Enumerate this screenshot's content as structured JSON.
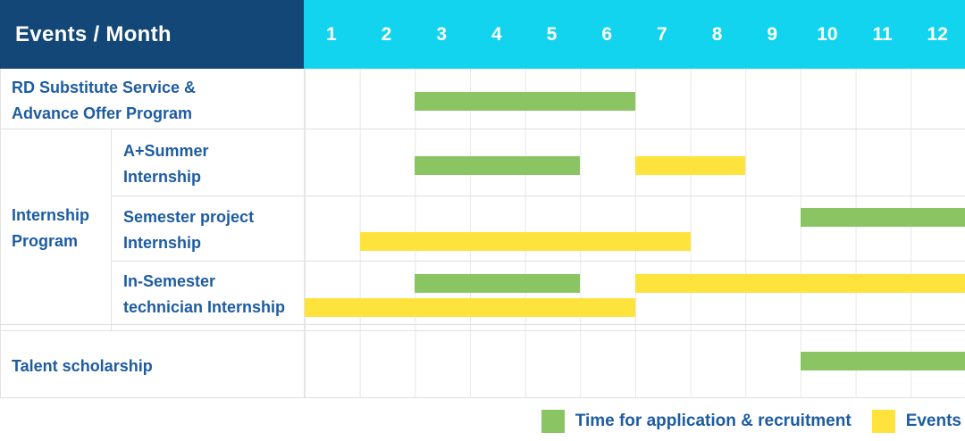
{
  "header": {
    "title": "Events / Month"
  },
  "colors": {
    "header_navy": "#134778",
    "header_cyan": "#12d4ee",
    "application_green": "#8bc462",
    "event_yellow": "#ffe33d",
    "label_blue": "#1d5ca2",
    "grid_gray": "#e7e7e7"
  },
  "chart_data": {
    "type": "gantt",
    "x_unit": "month",
    "x_range": [
      1,
      12
    ],
    "months": [
      "1",
      "2",
      "3",
      "4",
      "5",
      "6",
      "7",
      "8",
      "9",
      "10",
      "11",
      "12"
    ],
    "grid": true,
    "group_label_lines": [
      "Internship",
      "Program"
    ],
    "rows": [
      {
        "label": "RD Substitute Service & Advance Offer Program",
        "label_lines": [
          "RD Substitute Service &",
          "Advance Offer Program"
        ],
        "group": null,
        "bars": [
          {
            "kind": "application",
            "start_month": 3,
            "end_month": 6,
            "row_line": 0
          }
        ]
      },
      {
        "label": "A+Summer Internship",
        "label_lines": [
          "A+Summer",
          "Internship"
        ],
        "group": "Internship Program",
        "bars": [
          {
            "kind": "application",
            "start_month": 3,
            "end_month": 5,
            "row_line": 0
          },
          {
            "kind": "event",
            "start_month": 7,
            "end_month": 8,
            "row_line": 0
          }
        ]
      },
      {
        "label": "Semester project Internship",
        "label_lines": [
          "Semester project",
          "Internship"
        ],
        "group": "Internship Program",
        "bars": [
          {
            "kind": "application",
            "start_month": 10,
            "end_month": 12,
            "row_line": 0
          },
          {
            "kind": "event",
            "start_month": 2,
            "end_month": 7,
            "row_line": 1
          }
        ]
      },
      {
        "label": "In-Semester technician Internship",
        "label_lines": [
          "In-Semester",
          "technician Internship"
        ],
        "group": "Internship Program",
        "bars": [
          {
            "kind": "application",
            "start_month": 3,
            "end_month": 5,
            "row_line": 0
          },
          {
            "kind": "event",
            "start_month": 7,
            "end_month": 12,
            "row_line": 0
          },
          {
            "kind": "event",
            "start_month": 1,
            "end_month": 6,
            "row_line": 1
          }
        ]
      },
      {
        "label": "Talent scholarship",
        "label_lines": [
          "Talent scholarship"
        ],
        "group": null,
        "bars": [
          {
            "kind": "application",
            "start_month": 10,
            "end_month": 12,
            "row_line": 0
          }
        ]
      }
    ],
    "legend": [
      {
        "kind": "application",
        "label": "Time for application & recruitment",
        "color": "#8bc462"
      },
      {
        "kind": "event",
        "label": "Events",
        "color": "#ffe33d"
      }
    ]
  }
}
